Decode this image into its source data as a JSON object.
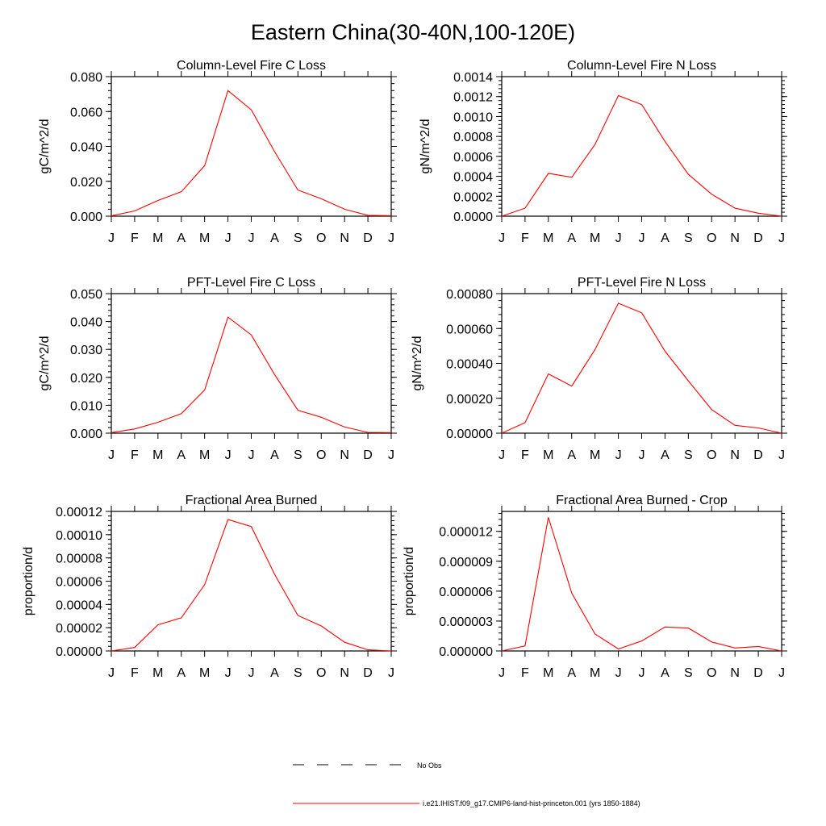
{
  "figure_title": "Eastern China(30-40N,100-120E)",
  "legend": {
    "entries": [
      {
        "label": "No Obs",
        "color": "#000000",
        "style": "dashed"
      },
      {
        "label": "i.e21.IHIST.f09_g17.CMIP6-land-hist-princeton.001 (yrs 1850-1884)",
        "color": "#ff0000",
        "style": "solid"
      }
    ]
  },
  "chart_data": [
    {
      "type": "line",
      "title": "Column-Level Fire C Loss",
      "xlabel": "",
      "ylabel": "gC/m^2/d",
      "categories": [
        "J",
        "F",
        "M",
        "A",
        "M",
        "J",
        "J",
        "A",
        "S",
        "O",
        "N",
        "D",
        "J"
      ],
      "yticks": [
        "0.000",
        "0.020",
        "0.040",
        "0.060",
        "0.080"
      ],
      "ylim": [
        0,
        0.08
      ],
      "series": [
        {
          "color": "#ff0000",
          "values": [
            0.0002,
            0.003,
            0.009,
            0.014,
            0.029,
            0.072,
            0.061,
            0.037,
            0.015,
            0.01,
            0.004,
            0.0005,
            0.0003
          ]
        }
      ]
    },
    {
      "type": "line",
      "title": "Column-Level Fire N Loss",
      "xlabel": "",
      "ylabel": "gN/m^2/d",
      "categories": [
        "J",
        "F",
        "M",
        "A",
        "M",
        "J",
        "J",
        "A",
        "S",
        "O",
        "N",
        "D",
        "J"
      ],
      "yticks": [
        "0.0000",
        "0.0002",
        "0.0004",
        "0.0006",
        "0.0008",
        "0.0010",
        "0.0012",
        "0.0014"
      ],
      "ylim": [
        0,
        0.0014
      ],
      "series": [
        {
          "color": "#ff0000",
          "values": [
            0.0,
            8e-05,
            0.00043,
            0.00039,
            0.00072,
            0.00121,
            0.00112,
            0.00075,
            0.00042,
            0.00022,
            8e-05,
            3e-05,
            0.0
          ]
        }
      ]
    },
    {
      "type": "line",
      "title": "PFT-Level Fire C Loss",
      "xlabel": "",
      "ylabel": "gC/m^2/d",
      "categories": [
        "J",
        "F",
        "M",
        "A",
        "M",
        "J",
        "J",
        "A",
        "S",
        "O",
        "N",
        "D",
        "J"
      ],
      "yticks": [
        "0.000",
        "0.010",
        "0.020",
        "0.030",
        "0.040",
        "0.050"
      ],
      "ylim": [
        0,
        0.05
      ],
      "series": [
        {
          "color": "#ff0000",
          "values": [
            0.0002,
            0.0015,
            0.0039,
            0.007,
            0.0155,
            0.0416,
            0.0352,
            0.021,
            0.0082,
            0.0057,
            0.0022,
            0.0003,
            0.0002
          ]
        }
      ]
    },
    {
      "type": "line",
      "title": "PFT-Level Fire N Loss",
      "xlabel": "",
      "ylabel": "gN/m^2/d",
      "categories": [
        "J",
        "F",
        "M",
        "A",
        "M",
        "J",
        "J",
        "A",
        "S",
        "O",
        "N",
        "D",
        "J"
      ],
      "yticks": [
        "0.00000",
        "0.00020",
        "0.00040",
        "0.00060",
        "0.00080"
      ],
      "ylim": [
        0,
        0.0008
      ],
      "series": [
        {
          "color": "#ff0000",
          "values": [
            0.0,
            6e-05,
            0.00034,
            0.00027,
            0.00048,
            0.000745,
            0.00069,
            0.00047,
            0.0003,
            0.000135,
            4.5e-05,
            3e-05,
            0.0
          ]
        }
      ]
    },
    {
      "type": "line",
      "title": "Fractional Area Burned",
      "xlabel": "",
      "ylabel": "proportion/d",
      "categories": [
        "J",
        "F",
        "M",
        "A",
        "M",
        "J",
        "J",
        "A",
        "S",
        "O",
        "N",
        "D",
        "J"
      ],
      "yticks": [
        "0.00000",
        "0.00002",
        "0.00004",
        "0.00006",
        "0.00008",
        "0.00010",
        "0.00012"
      ],
      "ylim": [
        0,
        0.00012
      ],
      "series": [
        {
          "color": "#ff0000",
          "values": [
            0.0,
            3e-06,
            2.25e-05,
            2.85e-05,
            5.7e-05,
            0.000113,
            0.000107,
            6.6e-05,
            3.05e-05,
            2.15e-05,
            7.5e-06,
            1e-06,
            0.0
          ]
        }
      ]
    },
    {
      "type": "line",
      "title": "Fractional Area Burned - Crop",
      "xlabel": "",
      "ylabel": "proportion/d",
      "categories": [
        "J",
        "F",
        "M",
        "A",
        "M",
        "J",
        "J",
        "A",
        "S",
        "O",
        "N",
        "D",
        "J"
      ],
      "yticks": [
        "0.000000",
        "0.000003",
        "0.000006",
        "0.000009",
        "0.000012"
      ],
      "ylim": [
        0,
        1.4e-05
      ],
      "series": [
        {
          "color": "#ff0000",
          "values": [
            0.0,
            5e-07,
            1.34e-05,
            5.8e-06,
            1.7e-06,
            2e-07,
            1e-06,
            2.4e-06,
            2.3e-06,
            9e-07,
            3e-07,
            4.5e-07,
            0.0
          ]
        }
      ]
    }
  ]
}
